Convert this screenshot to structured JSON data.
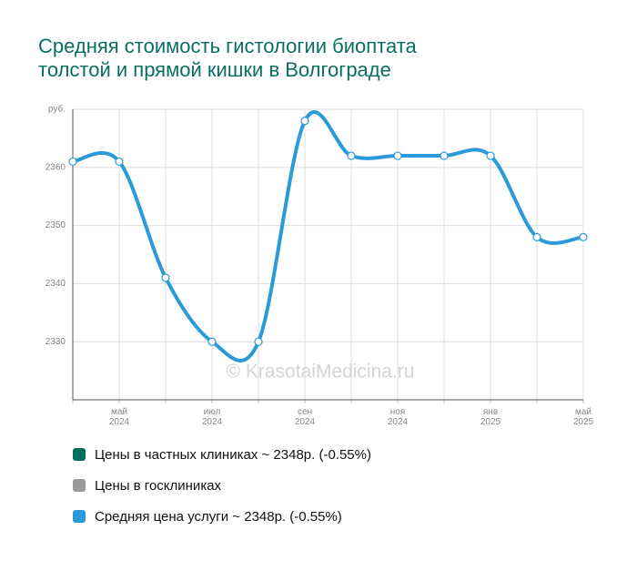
{
  "chart_data": {
    "type": "line",
    "title": "Средняя стоимость гистологии биоптата толстой и прямой кишки в Волгограде",
    "watermark": "© KrasotaiMedicina.ru",
    "categories": [
      null,
      "май 2024",
      null,
      "июл 2024",
      null,
      "сен 2024",
      null,
      "ноя 2024",
      null,
      "янв 2025",
      null,
      "май 2025"
    ],
    "series": [
      {
        "name": "Цены в частных клиниках ~ 2348р. (-0.55%)",
        "color": "#006e5f"
      },
      {
        "name": "Цены в госклиниках",
        "color": "#9a9a9a"
      },
      {
        "name": "Средняя цена услуги ~ 2348р. (-0.55%)",
        "color": "#2a9ad8",
        "values": [
          2361,
          2361,
          2341,
          2330,
          2330,
          2368,
          2362,
          2362,
          2362,
          2362,
          2348,
          2348
        ]
      }
    ],
    "ylim": [
      2320,
      2370
    ],
    "yticks": [
      2330,
      2340,
      2350,
      2360,
      {
        "value": 2370,
        "label": "руб."
      }
    ],
    "grid": true
  }
}
